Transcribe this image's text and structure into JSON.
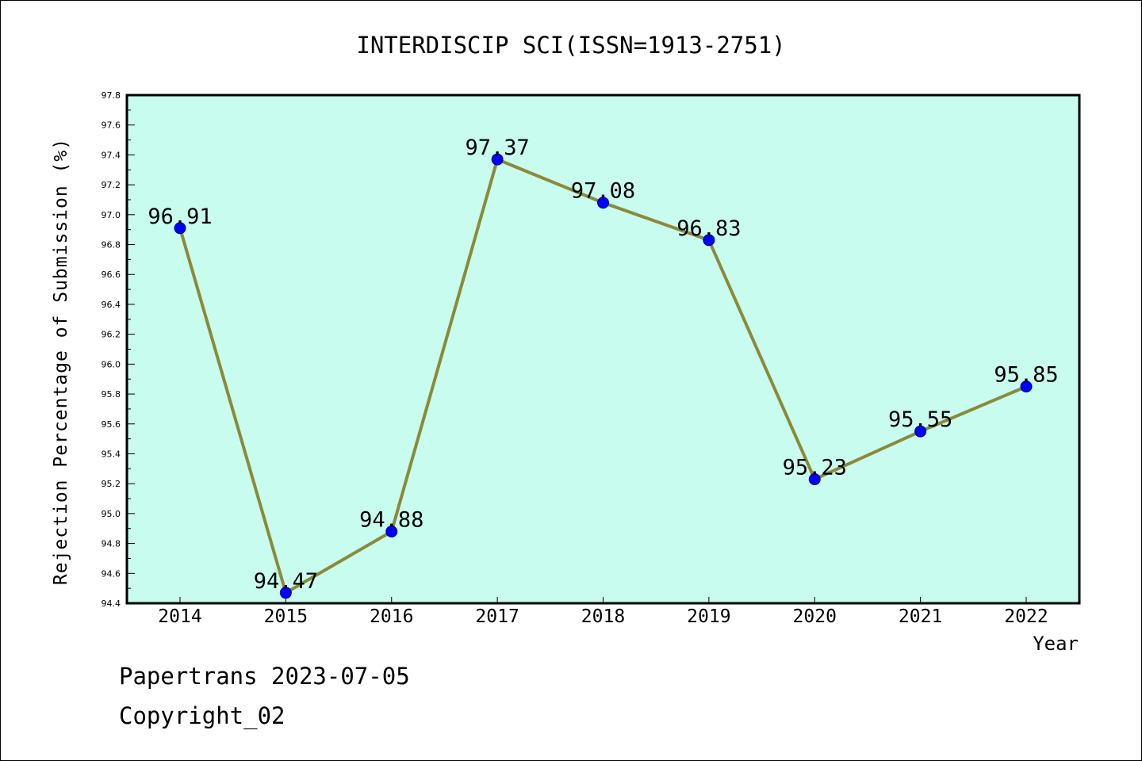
{
  "chart_data": {
    "type": "line",
    "title": "INTERDISCIP SCI(ISSN=1913-2751)",
    "xlabel": "Year",
    "ylabel": "Rejection Percentage of Submission (%)",
    "x": [
      "2014",
      "2015",
      "2016",
      "2017",
      "2018",
      "2019",
      "2020",
      "2021",
      "2022"
    ],
    "series": [
      {
        "values": [
          96.91,
          94.47,
          94.88,
          97.37,
          97.08,
          96.83,
          95.23,
          95.55,
          95.85
        ],
        "labels": [
          "96.91",
          "94.47",
          "94.88",
          "97.37",
          "97.08",
          "96.83",
          "95.23",
          "95.55",
          "95.85"
        ]
      }
    ],
    "ylim": [
      94.4,
      97.8
    ],
    "yticks": [
      "94.4",
      "94.6",
      "94.8",
      "95.0",
      "95.2",
      "95.4",
      "95.6",
      "95.8",
      "96.0",
      "96.2",
      "96.4",
      "96.6",
      "96.8",
      "97.0",
      "97.2",
      "97.4",
      "97.6",
      "97.8"
    ],
    "grid": false,
    "colors": {
      "plot_background": "#c8fcee",
      "line": "#8b8a3a",
      "marker": "#0000ff"
    }
  },
  "footer": {
    "source": "Papertrans 2023-07-05",
    "copyright": "Copyright_02"
  }
}
